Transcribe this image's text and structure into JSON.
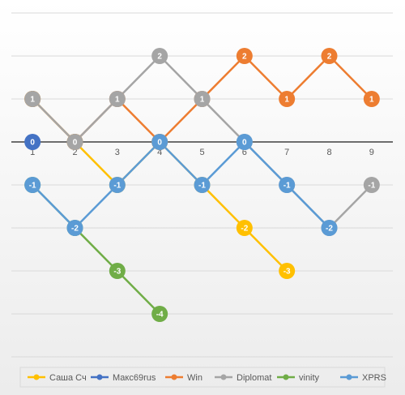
{
  "chart_data": {
    "type": "line",
    "categories": [
      "1",
      "2",
      "3",
      "4",
      "5",
      "6",
      "7",
      "8",
      "9"
    ],
    "series": [
      {
        "name": "Саша Сч",
        "color": "#ffc000",
        "values": [
          1,
          0,
          -1,
          0,
          -1,
          -2,
          -3,
          null,
          null
        ]
      },
      {
        "name": "Макс69rus",
        "color": "#4472c4",
        "values": [
          0,
          null,
          null,
          null,
          null,
          null,
          null,
          null,
          null
        ]
      },
      {
        "name": "Win",
        "color": "#ed7d31",
        "values": [
          1,
          0,
          1,
          0,
          1,
          2,
          1,
          2,
          1
        ]
      },
      {
        "name": "Diplomat",
        "color": "#a5a5a5",
        "values": [
          1,
          0,
          1,
          2,
          1,
          0,
          -1,
          -2,
          -1
        ]
      },
      {
        "name": "vinity",
        "color": "#70ad47",
        "values": [
          -1,
          -2,
          -3,
          -4,
          null,
          null,
          null,
          null,
          null
        ]
      },
      {
        "name": "XPRS",
        "color": "#5b9bd5",
        "values": [
          -1,
          -2,
          -1,
          0,
          -1,
          0,
          -1,
          -2,
          null
        ]
      }
    ],
    "ylim": [
      -5,
      3
    ],
    "yticks": [
      -5,
      -4,
      -3,
      -2,
      -1,
      0,
      1,
      2,
      3
    ],
    "grid": true,
    "legend": "bottom"
  }
}
